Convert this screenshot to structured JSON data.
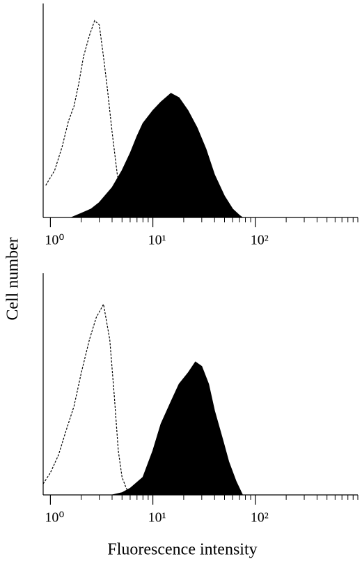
{
  "chart_data": [
    {
      "type": "histogram",
      "log_x": true,
      "ylabel": "Cell number",
      "xlim": [
        0.85,
        1000
      ],
      "ylim": [
        0,
        100
      ],
      "xticks": [
        {
          "value": 1,
          "label": "10⁰"
        },
        {
          "value": 10,
          "label": "10¹"
        },
        {
          "value": 100,
          "label": "10²"
        }
      ],
      "xminorticks": [
        2,
        3,
        4,
        5,
        6,
        7,
        8,
        9,
        20,
        30,
        40,
        50,
        60,
        70,
        80,
        90,
        200,
        300,
        400,
        500,
        600,
        700,
        800,
        900,
        1000
      ],
      "series": [
        {
          "style": "dashed",
          "color": "#000000",
          "x": [
            0.9,
            1.1,
            1.3,
            1.5,
            1.7,
            1.9,
            2.1,
            2.4,
            2.7,
            3.0,
            3.3,
            3.6,
            4.0,
            4.5,
            5.0,
            5.5,
            6.0
          ],
          "values": [
            15,
            22,
            33,
            45,
            52,
            63,
            75,
            85,
            92,
            90,
            75,
            60,
            40,
            20,
            8,
            2,
            0
          ]
        },
        {
          "style": "filled",
          "color": "#000000",
          "x": [
            1.6,
            2,
            2.5,
            3,
            4,
            5,
            6,
            7,
            8,
            10,
            12,
            15,
            18,
            22,
            27,
            33,
            40,
            50,
            60,
            70,
            75
          ],
          "values": [
            0,
            2,
            4,
            7,
            14,
            22,
            30,
            38,
            44,
            50,
            54,
            58,
            56,
            50,
            42,
            32,
            20,
            10,
            4,
            1,
            0
          ]
        }
      ]
    },
    {
      "type": "histogram",
      "log_x": true,
      "xlabel": "Fluorescence intensity",
      "xlim": [
        0.85,
        1000
      ],
      "ylim": [
        0,
        100
      ],
      "xticks": [
        {
          "value": 1,
          "label": "10⁰"
        },
        {
          "value": 10,
          "label": "10¹"
        },
        {
          "value": 100,
          "label": "10²"
        }
      ],
      "xminorticks": [
        2,
        3,
        4,
        5,
        6,
        7,
        8,
        9,
        20,
        30,
        40,
        50,
        60,
        70,
        80,
        90,
        200,
        300,
        400,
        500,
        600,
        700,
        800,
        900,
        1000
      ],
      "series": [
        {
          "style": "dashed",
          "color": "#000000",
          "x": [
            0.85,
            1,
            1.2,
            1.4,
            1.7,
            2,
            2.4,
            2.8,
            3.3,
            3.8,
            4.2,
            4.6,
            5.0,
            5.5,
            6
          ],
          "values": [
            5,
            10,
            18,
            28,
            40,
            55,
            70,
            80,
            86,
            70,
            45,
            20,
            8,
            3,
            0
          ]
        },
        {
          "style": "filled",
          "color": "#000000",
          "x": [
            4,
            5,
            6,
            8,
            10,
            12,
            15,
            18,
            22,
            26,
            30,
            35,
            40,
            48,
            55,
            65,
            75
          ],
          "values": [
            0,
            1,
            3,
            8,
            20,
            32,
            42,
            50,
            55,
            60,
            58,
            50,
            38,
            25,
            15,
            6,
            0
          ]
        }
      ]
    }
  ]
}
